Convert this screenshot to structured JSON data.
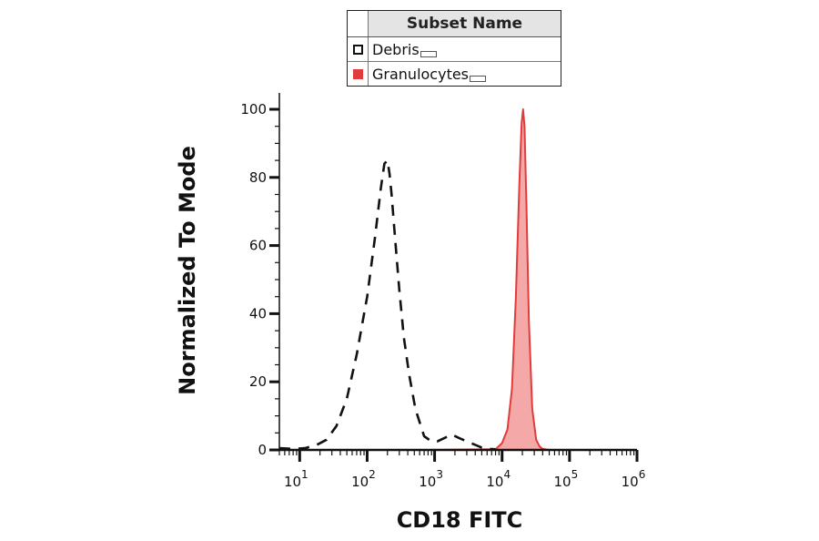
{
  "chart_data": {
    "type": "area",
    "title": "",
    "xlabel": "CD18 FITC",
    "ylabel": "Normalized To Mode",
    "x_scale": "log",
    "xlim": [
      5,
      1000000
    ],
    "ylim": [
      0,
      100
    ],
    "x_ticks": [
      {
        "base": "10",
        "exp": "1",
        "value": 10
      },
      {
        "base": "10",
        "exp": "2",
        "value": 100
      },
      {
        "base": "10",
        "exp": "3",
        "value": 1000
      },
      {
        "base": "10",
        "exp": "4",
        "value": 10000
      },
      {
        "base": "10",
        "exp": "5",
        "value": 100000
      },
      {
        "base": "10",
        "exp": "6",
        "value": 1000000
      }
    ],
    "y_ticks": [
      "0",
      "20",
      "40",
      "60",
      "80",
      "100"
    ],
    "legend": {
      "title": "Subset Name",
      "placement": "top"
    },
    "series": [
      {
        "name": "Debris",
        "style": "dashed",
        "color": "#111111",
        "fill": "none",
        "x": [
          5,
          8,
          12,
          18,
          25,
          35,
          50,
          70,
          100,
          130,
          160,
          180,
          200,
          215,
          230,
          260,
          300,
          350,
          420,
          520,
          700,
          900,
          1100,
          1400,
          1800,
          2300,
          3000,
          4000,
          5000,
          6500,
          8000
        ],
        "y": [
          0.5,
          0.3,
          0.5,
          1.5,
          3,
          7,
          15,
          28,
          45,
          62,
          77,
          84,
          85,
          81,
          75,
          62,
          47,
          33,
          22,
          12,
          4,
          2.5,
          2.5,
          3.5,
          4.5,
          3.5,
          2.5,
          1.5,
          0.7,
          0.3,
          0.2
        ]
      },
      {
        "name": "Granulocytes",
        "style": "solid",
        "color": "#e03c3c",
        "fill": "#f5a8a8",
        "x": [
          5,
          1000,
          8000,
          10000,
          12000,
          14000,
          16000,
          18000,
          19500,
          20500,
          21500,
          23000,
          25000,
          28000,
          32000,
          36000,
          40000,
          50000,
          1000000
        ],
        "y": [
          0,
          0,
          0.2,
          2,
          6,
          18,
          45,
          78,
          96,
          100,
          95,
          72,
          38,
          12,
          3,
          1,
          0.3,
          0,
          0
        ]
      }
    ]
  }
}
